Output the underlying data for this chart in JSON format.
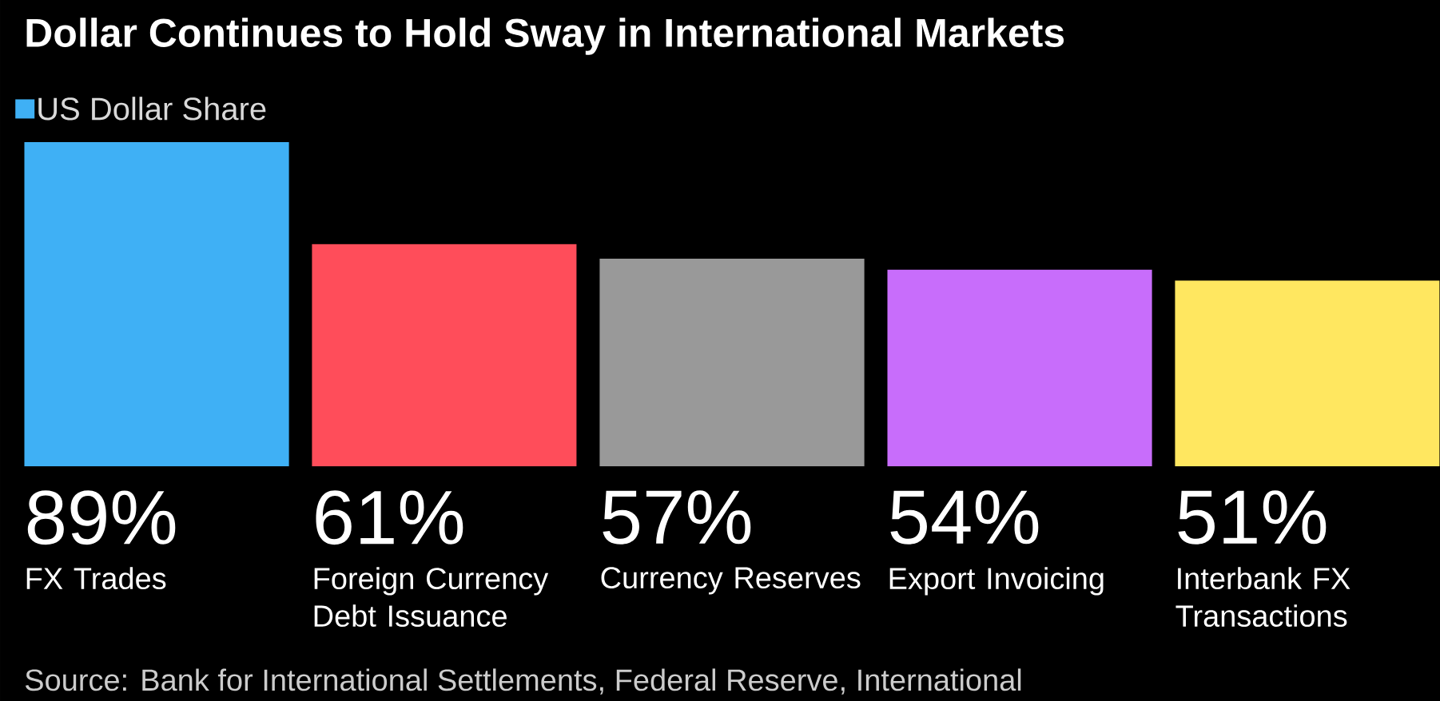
{
  "chart_data": {
    "type": "bar",
    "title": "Dollar Continues to Hold Sway in International Markets",
    "categories": [
      "FX Trades",
      "Foreign Currency Debt Issuance",
      "Currency Reserves",
      "Export Invoicing",
      "Interbank FX Transactions"
    ],
    "series": [
      {
        "name": "US Dollar Share",
        "color": "#3fb0f5",
        "values": [
          89,
          61,
          57,
          54,
          51
        ],
        "colors": [
          "#3fb0f5",
          "#ff4d5a",
          "#999999",
          "#c86dfb",
          "#ffe760"
        ],
        "value_labels": [
          "89%",
          "61%",
          "57%",
          "54%",
          "51%"
        ]
      }
    ],
    "legend": "top left",
    "annotations": [
      "Source: Bank for International Settlements, Federal Reserve, International"
    ]
  }
}
